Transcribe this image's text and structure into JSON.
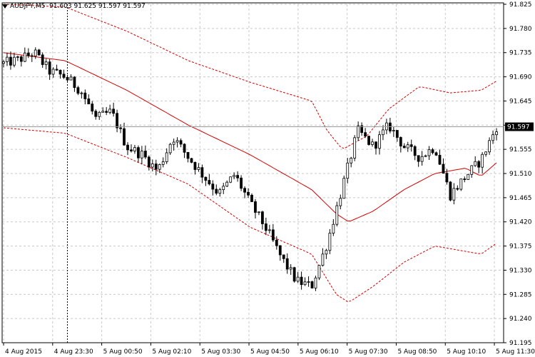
{
  "header": {
    "symbol": "AUDJPY,M5",
    "open": "91.603",
    "high": "91.625",
    "low": "91.597",
    "close": "91.597"
  },
  "colors": {
    "background": "#ffffff",
    "grid": "#c8c8c8",
    "candle": "#000000",
    "moving_average": "#d40000",
    "envelope": "#d40000",
    "price_label_bg": "#000000",
    "price_label_text": "#ffffff"
  },
  "current_price_label": "91.597",
  "chart_data": {
    "type": "candlestick",
    "y_ticks": [
      "91.825",
      "91.780",
      "91.735",
      "91.690",
      "91.645",
      "91.600",
      "91.555",
      "91.510",
      "91.465",
      "91.420",
      "91.375",
      "91.330",
      "91.285",
      "91.240",
      "91.195"
    ],
    "ylim": [
      91.195,
      91.825
    ],
    "x_ticks": [
      "4 Aug 2015",
      "4 Aug 23:30",
      "5 Aug 00:50",
      "5 Aug 02:10",
      "5 Aug 03:30",
      "5 Aug 04:50",
      "5 Aug 06:10",
      "5 Aug 07:30",
      "5 Aug 08:50",
      "5 Aug 10:10",
      "5 Aug 11:30"
    ],
    "grid": true,
    "bar_count": 140,
    "crosshair_at_bar": 18,
    "price_anchors": [
      [
        0,
        91.715
      ],
      [
        5,
        91.722
      ],
      [
        10,
        91.735
      ],
      [
        15,
        91.7
      ],
      [
        20,
        91.69
      ],
      [
        25,
        91.665
      ],
      [
        30,
        91.612
      ],
      [
        35,
        91.625
      ],
      [
        40,
        91.56
      ],
      [
        45,
        91.545
      ],
      [
        50,
        91.515
      ],
      [
        55,
        91.578
      ],
      [
        60,
        91.54
      ],
      [
        65,
        91.505
      ],
      [
        70,
        91.472
      ],
      [
        75,
        91.508
      ],
      [
        80,
        91.455
      ],
      [
        85,
        91.41
      ],
      [
        90,
        91.355
      ],
      [
        95,
        91.31
      ],
      [
        100,
        91.3
      ],
      [
        105,
        91.38
      ],
      [
        110,
        91.485
      ],
      [
        115,
        91.59
      ],
      [
        120,
        91.56
      ],
      [
        125,
        91.6
      ],
      [
        130,
        91.56
      ],
      [
        135,
        91.54
      ],
      [
        140,
        91.56
      ],
      [
        145,
        91.47
      ],
      [
        150,
        91.505
      ],
      [
        155,
        91.535
      ],
      [
        160,
        91.597
      ]
    ],
    "moving_average": [
      [
        0,
        91.735
      ],
      [
        20,
        91.72
      ],
      [
        40,
        91.665
      ],
      [
        60,
        91.6
      ],
      [
        80,
        91.545
      ],
      [
        100,
        91.48
      ],
      [
        108,
        91.435
      ],
      [
        112,
        91.42
      ],
      [
        120,
        91.44
      ],
      [
        130,
        91.48
      ],
      [
        140,
        91.51
      ],
      [
        150,
        91.52
      ],
      [
        155,
        91.505
      ],
      [
        160,
        91.53
      ]
    ],
    "upper_envelope": [
      [
        0,
        91.825
      ],
      [
        20,
        91.82
      ],
      [
        40,
        91.775
      ],
      [
        60,
        91.72
      ],
      [
        80,
        91.68
      ],
      [
        100,
        91.645
      ],
      [
        105,
        91.59
      ],
      [
        110,
        91.555
      ],
      [
        118,
        91.58
      ],
      [
        125,
        91.63
      ],
      [
        135,
        91.672
      ],
      [
        145,
        91.66
      ],
      [
        155,
        91.665
      ],
      [
        160,
        91.682
      ]
    ],
    "lower_envelope": [
      [
        0,
        91.595
      ],
      [
        20,
        91.585
      ],
      [
        40,
        91.54
      ],
      [
        60,
        91.49
      ],
      [
        80,
        91.41
      ],
      [
        100,
        91.36
      ],
      [
        108,
        91.285
      ],
      [
        112,
        91.27
      ],
      [
        120,
        91.3
      ],
      [
        130,
        91.345
      ],
      [
        140,
        91.375
      ],
      [
        150,
        91.365
      ],
      [
        155,
        91.36
      ],
      [
        160,
        91.38
      ]
    ]
  }
}
